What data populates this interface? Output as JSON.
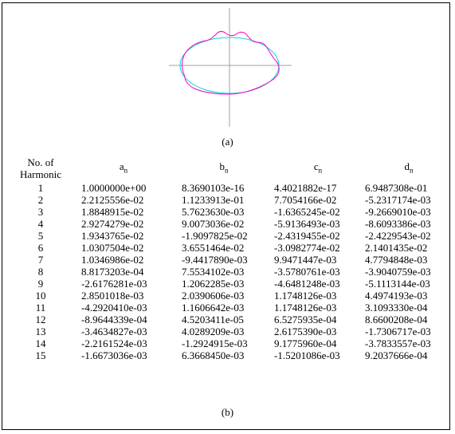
{
  "caption_a": "(a)",
  "caption_b": "(b)",
  "colors": {
    "circle": "#00d8d8",
    "shape": "#ff00c8",
    "axes": "#a0a0a0"
  },
  "table": {
    "header": {
      "n_line1": "No. of",
      "n_line2": "Harmonic",
      "a_base": "a",
      "a_sub": "n",
      "b_base": "b",
      "b_sub": "n",
      "c_base": "c",
      "c_sub": "n",
      "d_base": "d",
      "d_sub": "n"
    },
    "rows": [
      {
        "n": "1",
        "a": "1.0000000e+00",
        "b": "8.3690103e-16",
        "c": "4.4021882e-17",
        "d": "6.9487308e-01"
      },
      {
        "n": "2",
        "a": "2.2125556e-02",
        "b": "1.1233913e-01",
        "c": "7.7054166e-02",
        "d": "-5.2317174e-03"
      },
      {
        "n": "3",
        "a": "1.8848915e-02",
        "b": "5.7623630e-03",
        "c": "-1.6365245e-02",
        "d": "-9.2669010e-03"
      },
      {
        "n": "4",
        "a": "2.9274279e-02",
        "b": "9.0073036e-02",
        "c": "-5.9136493e-03",
        "d": "-8.6093386e-03"
      },
      {
        "n": "5",
        "a": "1.9343765e-02",
        "b": "-1.9097825e-02",
        "c": "-2.4319455e-02",
        "d": "-2.4229543e-02"
      },
      {
        "n": "6",
        "a": "1.0307504e-02",
        "b": "3.6551464e-02",
        "c": "-3.0982774e-02",
        "d": "2.1401435e-02"
      },
      {
        "n": "7",
        "a": "1.0346986e-02",
        "b": "-9.4417890e-03",
        "c": "9.9471447e-03",
        "d": "4.7794848e-03"
      },
      {
        "n": "8",
        "a": "8.8173203e-04",
        "b": "7.5534102e-03",
        "c": "-3.5780761e-03",
        "d": "-3.9040759e-03"
      },
      {
        "n": "9",
        "a": "-2.6176281e-03",
        "b": "1.2062285e-03",
        "c": "-4.6481248e-03",
        "d": "-5.1113144e-03"
      },
      {
        "n": "10",
        "a": "2.8501018e-03",
        "b": "2.0390606e-03",
        "c": "1.1748126e-03",
        "d": "4.4974193e-03"
      },
      {
        "n": "11",
        "a": "-4.2920410e-03",
        "b": "1.1606642e-03",
        "c": "1.1748126e-03",
        "d": "3.1093330e-04"
      },
      {
        "n": "12",
        "a": "-8.9644339e-04",
        "b": "4.5203411e-05",
        "c": "6.5275935e-04",
        "d": "8.6600208e-04"
      },
      {
        "n": "13",
        "a": "-3.4634827e-03",
        "b": "4.0289209e-03",
        "c": "2.6175390e-03",
        "d": "-1.7306717e-03"
      },
      {
        "n": "14",
        "a": "-2.2161524e-03",
        "b": "-1.2924915e-03",
        "c": "9.1775960e-04",
        "d": "-3.7833557e-03"
      },
      {
        "n": "15",
        "a": "-1.6673036e-03",
        "b": "6.3668450e-03",
        "c": "-1.5201086e-03",
        "d": "9.2037666e-04"
      }
    ]
  }
}
